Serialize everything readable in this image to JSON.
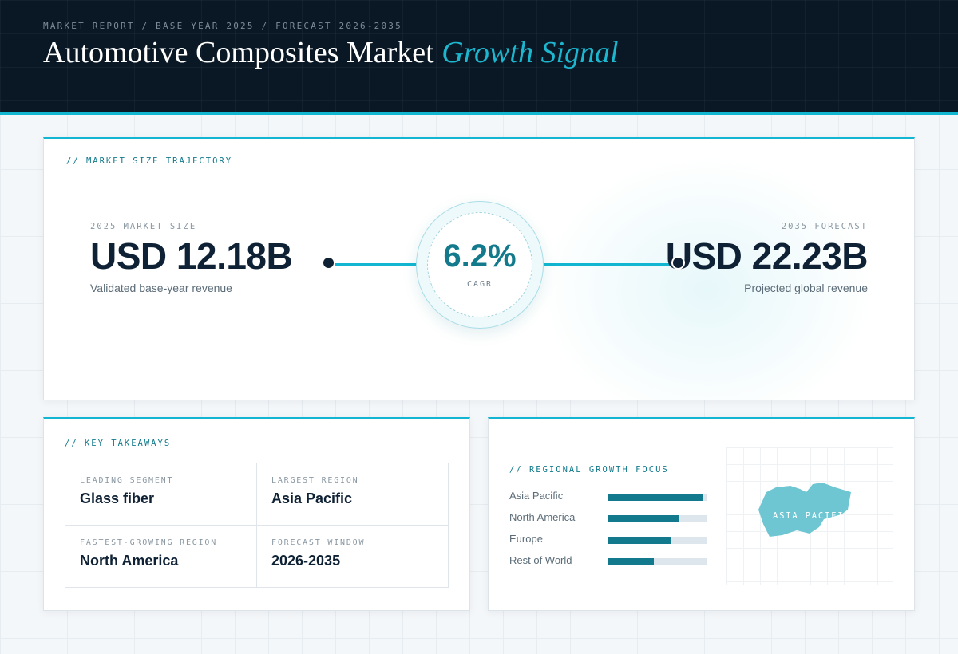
{
  "header": {
    "eyebrow": "MARKET REPORT / BASE YEAR 2025 / FORECAST 2026-2035",
    "title_main": "Automotive Composites Market",
    "title_accent": "Growth Signal"
  },
  "trajectory": {
    "section_label": "// MARKET SIZE TRAJECTORY",
    "base": {
      "label": "2025 MARKET SIZE",
      "value": "USD 12.18B",
      "caption": "Validated base-year revenue"
    },
    "forecast": {
      "label": "2035 FORECAST",
      "value": "USD 22.23B",
      "caption": "Projected global revenue"
    },
    "cagr": {
      "value": "6.2%",
      "label": "CAGR"
    }
  },
  "takeaways": {
    "section_label": "// KEY TAKEAWAYS",
    "items": [
      {
        "label": "LEADING SEGMENT",
        "value": "Glass fiber"
      },
      {
        "label": "LARGEST REGION",
        "value": "Asia Pacific"
      },
      {
        "label": "FASTEST-GROWING REGION",
        "value": "North America"
      },
      {
        "label": "FORECAST WINDOW",
        "value": "2026-2035"
      }
    ]
  },
  "regional": {
    "section_label": "// REGIONAL GROWTH FOCUS",
    "bars": [
      {
        "name": "Asia Pacific",
        "level": 0.96
      },
      {
        "name": "North America",
        "level": 0.72
      },
      {
        "name": "Europe",
        "level": 0.64
      },
      {
        "name": "Rest of World",
        "level": 0.46
      }
    ],
    "map_label": "ASIA PACIFIC"
  },
  "colors": {
    "header_bg": "#0a1826",
    "accent": "#12b6d0",
    "teal": "#127a8c",
    "ink": "#0f2235",
    "map_shape": "#6fc6d3"
  }
}
